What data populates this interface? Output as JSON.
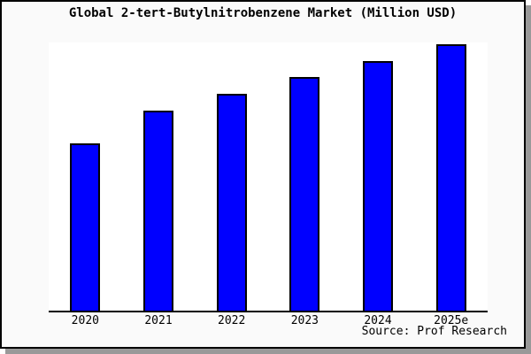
{
  "chart_data": {
    "type": "bar",
    "title": "Global 2-tert-Butylnitrobenzene Market (Million USD)",
    "categories": [
      "2020",
      "2021",
      "2022",
      "2023",
      "2024",
      "2025e"
    ],
    "values": [
      62.8,
      75.1,
      81.4,
      87.7,
      93.7,
      100.0
    ],
    "values_note": "y-axis has no ticks or labels; values are relative bar heights with 2025e = 100",
    "ylim": [
      0,
      100.7
    ],
    "xlabel": "",
    "ylabel": "",
    "grid": false,
    "legend": false,
    "bar_color": "#0000ff",
    "bar_border_color": "#000000",
    "source": "Source: Prof Research"
  },
  "colors": {
    "frame_background": "#fafafa",
    "plot_background": "#ffffff",
    "border": "#000000",
    "shadow": "#999999"
  }
}
